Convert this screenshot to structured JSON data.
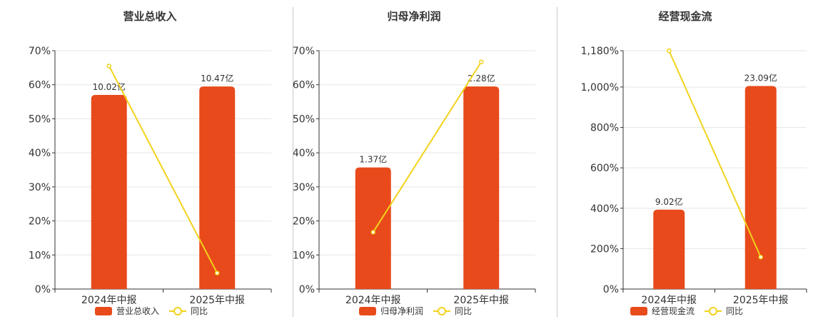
{
  "colors": {
    "bar": "#e84a1b",
    "line": "#f2d21b",
    "axis": "#333333",
    "grid": "#e6e6e6",
    "text": "#333333",
    "divider": "#c8c8c8"
  },
  "chart_data": [
    {
      "type": "bar",
      "title": "营业总收入",
      "categories": [
        "2024年中报",
        "2025年中报"
      ],
      "series": [
        {
          "name": "营业总收入",
          "type": "bar",
          "values": [
            57,
            59.5
          ],
          "labels": [
            "10.02亿",
            "10.47亿"
          ]
        },
        {
          "name": "同比",
          "type": "line",
          "values": [
            65.5,
            4.7
          ]
        }
      ],
      "ylim": [
        0,
        70
      ],
      "yticks": [
        0,
        10,
        20,
        30,
        40,
        50,
        60,
        70
      ],
      "ytick_labels": [
        "0%",
        "10%",
        "20%",
        "30%",
        "40%",
        "50%",
        "60%",
        "70%"
      ],
      "grid": true,
      "legend": "bottom-center"
    },
    {
      "type": "bar",
      "title": "归母净利润",
      "categories": [
        "2024年中报",
        "2025年中报"
      ],
      "series": [
        {
          "name": "归母净利润",
          "type": "bar",
          "values": [
            35.7,
            59.5
          ],
          "labels": [
            "1.37亿",
            "2.28亿"
          ]
        },
        {
          "name": "同比",
          "type": "line",
          "values": [
            16.7,
            66.7
          ]
        }
      ],
      "ylim": [
        0,
        70
      ],
      "yticks": [
        0,
        10,
        20,
        30,
        40,
        50,
        60,
        70
      ],
      "ytick_labels": [
        "0%",
        "10%",
        "20%",
        "30%",
        "40%",
        "50%",
        "60%",
        "70%"
      ],
      "grid": true,
      "legend": "bottom-center"
    },
    {
      "type": "bar",
      "title": "经营现金流",
      "categories": [
        "2024年中报",
        "2025年中报"
      ],
      "series": [
        {
          "name": "经营现金流",
          "type": "bar",
          "values": [
            393,
            1005
          ],
          "labels": [
            "9.02亿",
            "23.09亿"
          ]
        },
        {
          "name": "同比",
          "type": "line",
          "values": [
            1180,
            158
          ]
        }
      ],
      "ylim": [
        0,
        1180
      ],
      "yticks": [
        0,
        200,
        400,
        600,
        800,
        1000,
        1180
      ],
      "ytick_labels": [
        "0%",
        "200%",
        "400%",
        "600%",
        "800%",
        "1,000%",
        "1,180%"
      ],
      "grid": true,
      "legend": "bottom-center"
    }
  ]
}
